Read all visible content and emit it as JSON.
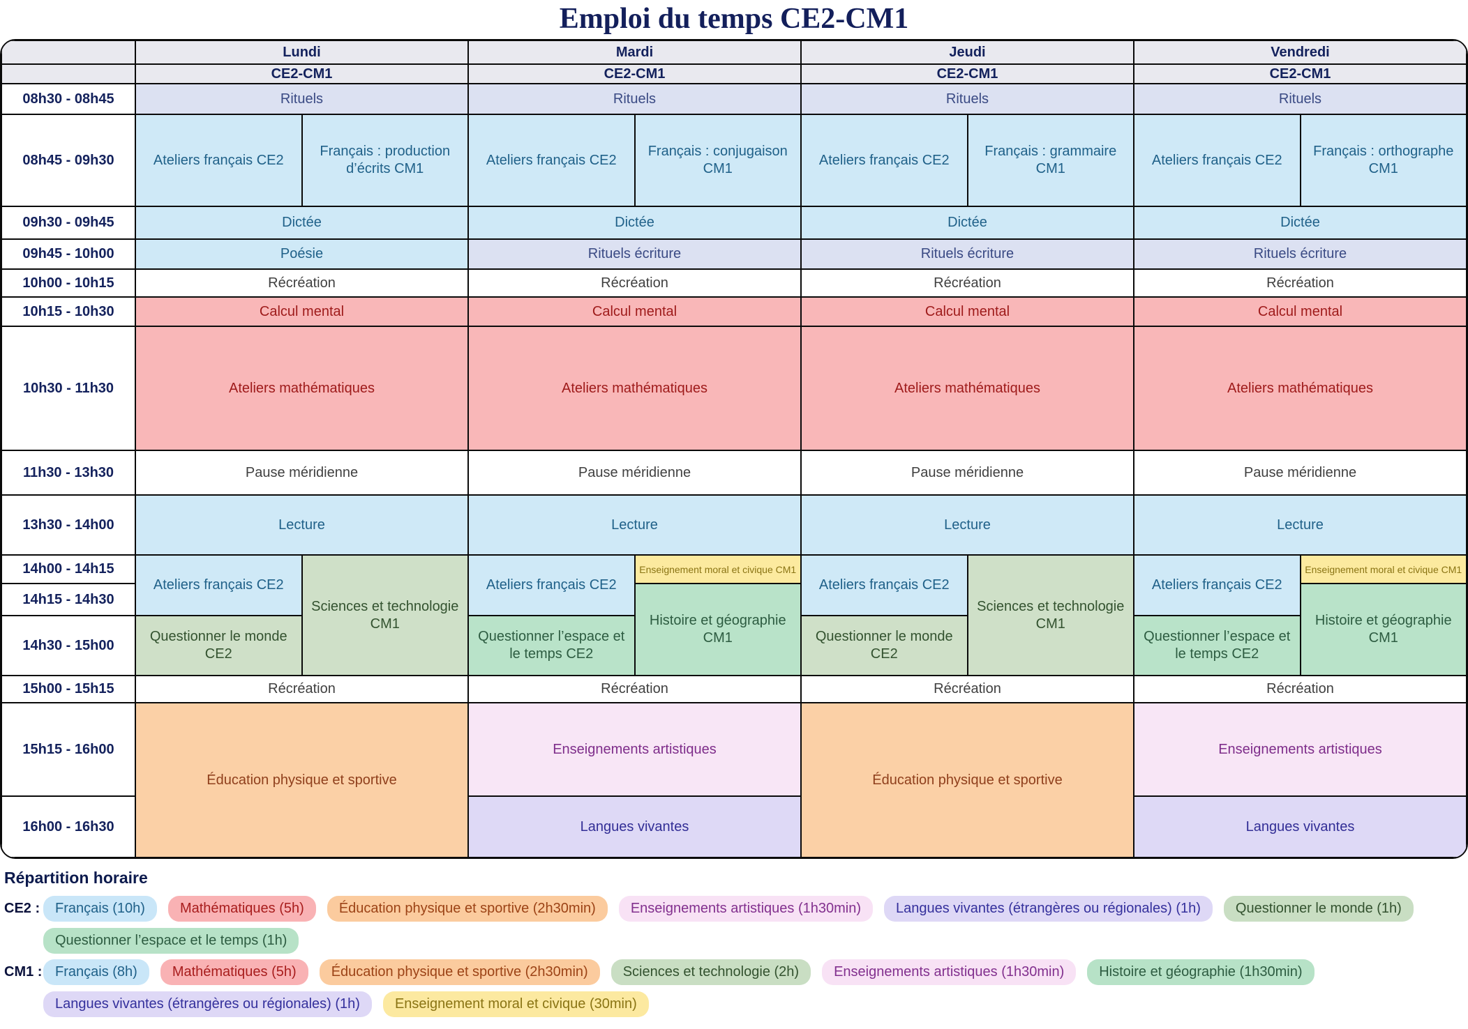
{
  "title": "Emploi du temps CE2-CM1",
  "days": [
    {
      "name": "Lundi",
      "group": "CE2-CM1"
    },
    {
      "name": "Mardi",
      "group": "CE2-CM1"
    },
    {
      "name": "Jeudi",
      "group": "CE2-CM1"
    },
    {
      "name": "Vendredi",
      "group": "CE2-CM1"
    }
  ],
  "time_slots": [
    "08h30 - 08h45",
    "08h45 - 09h30",
    "09h30 - 09h45",
    "09h45 - 10h00",
    "10h00 - 10h15",
    "10h15 - 10h30",
    "10h30 - 11h30",
    "11h30 - 13h30",
    "13h30 - 14h00",
    "14h00 - 14h15",
    "14h15 - 14h30",
    "14h30 - 15h00",
    "15h00 - 15h15",
    "15h15 - 16h00",
    "16h00 - 16h30"
  ],
  "cells": {
    "rituels": "Rituels",
    "ateliers_francais_ce2": "Ateliers français CE2",
    "morning_cm1": [
      "Français : production d’écrits CM1",
      "Français : conjugaison CM1",
      "Français : grammaire CM1",
      "Français : orthographe CM1"
    ],
    "dictee": "Dictée",
    "poesie": "Poésie",
    "rituels_ecriture": "Rituels écriture",
    "recreation": "Récréation",
    "calcul_mental": "Calcul mental",
    "ateliers_mathematiques": "Ateliers mathématiques",
    "pause_meridienne": "Pause méridienne",
    "lecture": "Lecture",
    "questionner_monde_ce2": "Questionner le monde CE2",
    "questionner_espace_ce2": "Questionner l’espace et le temps CE2",
    "sciences_cm1": "Sciences et technologie CM1",
    "emc_cm1": "Enseignement moral et civique CM1",
    "histoire_geo_cm1": "Histoire et géographie CM1",
    "eps": "Éducation physique et sportive",
    "arts": "Enseignements artistiques",
    "langues": "Langues vivantes"
  },
  "legend": {
    "heading": "Répartition horaire",
    "ce2": {
      "label": "CE2 :",
      "lines": [
        [
          {
            "label": "Français (10h)",
            "color": "#c9e6f8"
          },
          {
            "label": "Mathématiques (5h)",
            "color": "#f9b2b4"
          },
          {
            "label": "Éducation physique et sportive (2h30min)",
            "color": "#fbcb9e"
          },
          {
            "label": "Enseignements artistiques (1h30min)",
            "color": "#f8e2f5"
          },
          {
            "label": "Langues vivantes (étrangères ou régionales) (1h)",
            "color": "#ded8f6"
          },
          {
            "label": "Questionner le monde (1h)",
            "color": "#c9dec3"
          }
        ],
        [
          {
            "label": "Questionner l’espace et le temps (1h)",
            "color": "#b7e2c7"
          }
        ]
      ]
    },
    "cm1": {
      "label": "CM1 :",
      "lines": [
        [
          {
            "label": "Français (8h)",
            "color": "#c9e6f8"
          },
          {
            "label": "Mathématiques (5h)",
            "color": "#f9b2b4"
          },
          {
            "label": "Éducation physique et sportive (2h30min)",
            "color": "#fbcb9e"
          },
          {
            "label": "Sciences et technologie (2h)",
            "color": "#c9dec3"
          },
          {
            "label": "Enseignements artistiques (1h30min)",
            "color": "#f8e2f5"
          },
          {
            "label": "Histoire et géographie (1h30min)",
            "color": "#b7e2c7"
          }
        ],
        [
          {
            "label": "Langues vivantes (étrangères ou régionales) (1h)",
            "color": "#ded8f6"
          },
          {
            "label": "Enseignement moral et civique (30min)",
            "color": "#fce9a0"
          }
        ]
      ]
    }
  },
  "palette": {
    "header_gray": "#e9e9ef",
    "periwinkle": "#dce1f2",
    "light_blue": "#cfe9f7",
    "pink": "#f9b7b8",
    "sage_green": "#cfe0c8",
    "mint_green": "#b9e3c9",
    "yellow": "#fcea9f",
    "orange": "#fbd0a6",
    "pale_pink": "#f8e6f6",
    "lavender": "#ded9f6",
    "navy_text": "#13215c",
    "title_navy": "#131f5b"
  }
}
